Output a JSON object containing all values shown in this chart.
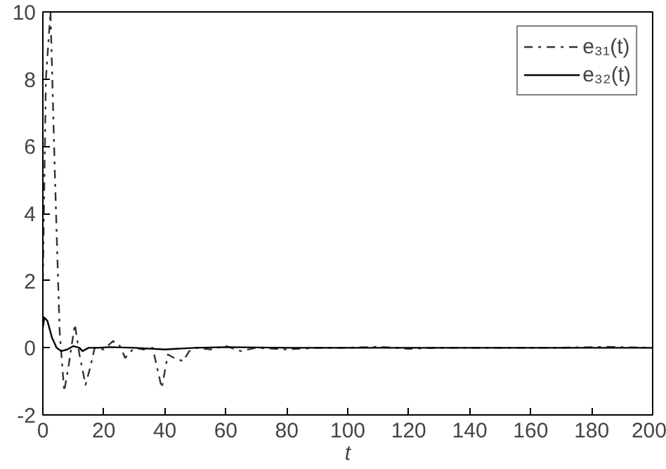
{
  "chart_data": {
    "type": "line",
    "xlabel": "t",
    "xlim": [
      0,
      200
    ],
    "ylim": [
      -2,
      10
    ],
    "xticks": [
      0,
      20,
      40,
      60,
      80,
      100,
      120,
      140,
      160,
      180,
      200
    ],
    "yticks": [
      -2,
      0,
      2,
      4,
      6,
      8,
      10
    ],
    "grid": false,
    "legend": "top right",
    "series": [
      {
        "name": "e₃₁(t)",
        "color": "#333333",
        "line_style": "dashdot",
        "x": [
          0,
          1,
          2.5,
          4,
          5.5,
          7,
          8.5,
          10.5,
          12,
          14,
          15.5,
          17,
          20,
          23,
          25,
          27,
          30,
          33,
          36,
          39,
          41,
          43,
          46,
          48,
          50,
          55,
          60,
          65,
          70,
          80,
          90,
          100,
          110,
          120,
          130,
          150,
          170,
          185,
          200
        ],
        "values": [
          2,
          8,
          10,
          5,
          0.5,
          -1.3,
          -0.5,
          0.7,
          -0.2,
          -1.1,
          -0.6,
          0,
          -0.05,
          0.2,
          0.1,
          -0.3,
          0,
          -0.05,
          0,
          -1.2,
          -0.2,
          -0.3,
          -0.4,
          -0.1,
          0,
          -0.05,
          0.05,
          -0.1,
          0,
          -0.05,
          0,
          0,
          0.03,
          -0.03,
          0,
          0,
          0,
          0.03,
          0
        ]
      },
      {
        "name": "e₃₂(t)",
        "color": "#000000",
        "line_style": "solid",
        "x": [
          0,
          0.5,
          1.5,
          3,
          4.5,
          6,
          8,
          10,
          12,
          13,
          15,
          18,
          22,
          30,
          40,
          50,
          60,
          80,
          100,
          130,
          160,
          200
        ],
        "values": [
          0.6,
          0.9,
          0.8,
          0.3,
          0,
          -0.1,
          -0.05,
          0.05,
          0,
          -0.1,
          0,
          0,
          0.02,
          0,
          -0.05,
          0,
          0.02,
          0,
          0,
          0,
          0,
          0
        ]
      }
    ]
  }
}
